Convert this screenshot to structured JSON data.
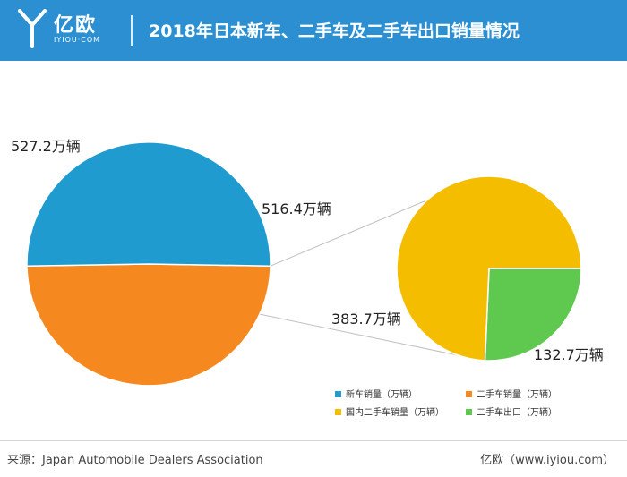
{
  "header": {
    "logo_cn": "亿欧",
    "logo_en": "IYIOU·COM",
    "title": "2018年日本新车、二手车及二手车出口销量情况"
  },
  "colors": {
    "header_bg": "#2b8fd1",
    "new_car": "#1f9bd0",
    "used_car": "#f5891f",
    "domestic_used": "#f5bd00",
    "used_export": "#5ec94e",
    "connector": "#bfbfbf"
  },
  "chart_data": [
    {
      "type": "pie",
      "slices": [
        {
          "name": "新车销量（万辆）",
          "value": 527.2,
          "label": "527.2万辆"
        },
        {
          "name": "二手车销量（万辆）",
          "value": 516.4,
          "label": "516.4万辆"
        }
      ]
    },
    {
      "type": "pie",
      "slices": [
        {
          "name": "国内二手车销量（万辆）",
          "value": 383.7,
          "label": "383.7万辆"
        },
        {
          "name": "二手车出口（万辆）",
          "value": 132.7,
          "label": "132.7万辆"
        }
      ]
    }
  ],
  "legend": [
    {
      "label": "新车销量（万辆）",
      "color": "#1f9bd0"
    },
    {
      "label": "二手车销量（万辆）",
      "color": "#f5891f"
    },
    {
      "label": "国内二手车销量（万辆）",
      "color": "#f5bd00"
    },
    {
      "label": "二手车出口（万辆）",
      "color": "#5ec94e"
    }
  ],
  "footer": {
    "source": "来源：Japan Automobile Dealers  Association",
    "brand": "亿欧（www.iyiou.com）"
  }
}
